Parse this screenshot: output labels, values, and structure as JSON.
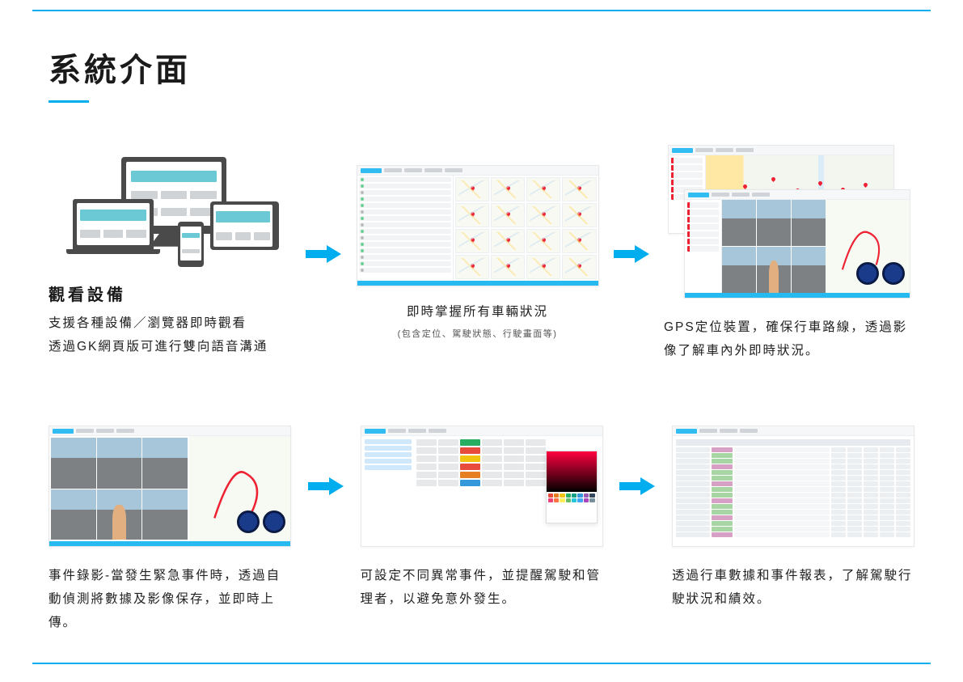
{
  "accent_color": "#00aeef",
  "heading": "系統介面",
  "row1": {
    "panel1": {
      "subtitle": "觀看設備",
      "desc_line1": "支援各種設備／瀏覽器即時觀看",
      "desc_line2": "透過GK網頁版可進行雙向語音溝通"
    },
    "panel2": {
      "caption": "即時掌握所有車輛狀況",
      "sub": "(包含定位、駕駛狀態、行駛畫面等)"
    },
    "panel3": {
      "caption": "GPS定位裝置，確保行車路線，透過影像了解車內外即時狀況。"
    }
  },
  "row2": {
    "panel1": {
      "caption": "事件錄影-當發生緊急事件時，透過自動偵測將數據及影像保存，並即時上傳。"
    },
    "panel2": {
      "caption": "可設定不同異常事件，並提醒駕駛和管理者，以避免意外發生。"
    },
    "panel3": {
      "caption": "透過行車數據和事件報表，了解駕駛行駛狀況和績效。"
    }
  },
  "event_colors": [
    "#e74c3c",
    "#27ae60",
    "#f1c40f",
    "#e67e22",
    "#3498db"
  ],
  "swatch_colors": [
    "#e74c3c",
    "#e67e22",
    "#f1c40f",
    "#27ae60",
    "#16a085",
    "#3498db",
    "#9b59b6",
    "#34495e",
    "#ec407a",
    "#ff7043",
    "#ffee58",
    "#66bb6a",
    "#26c6da",
    "#42a5f5",
    "#ab47bc",
    "#78909c"
  ]
}
